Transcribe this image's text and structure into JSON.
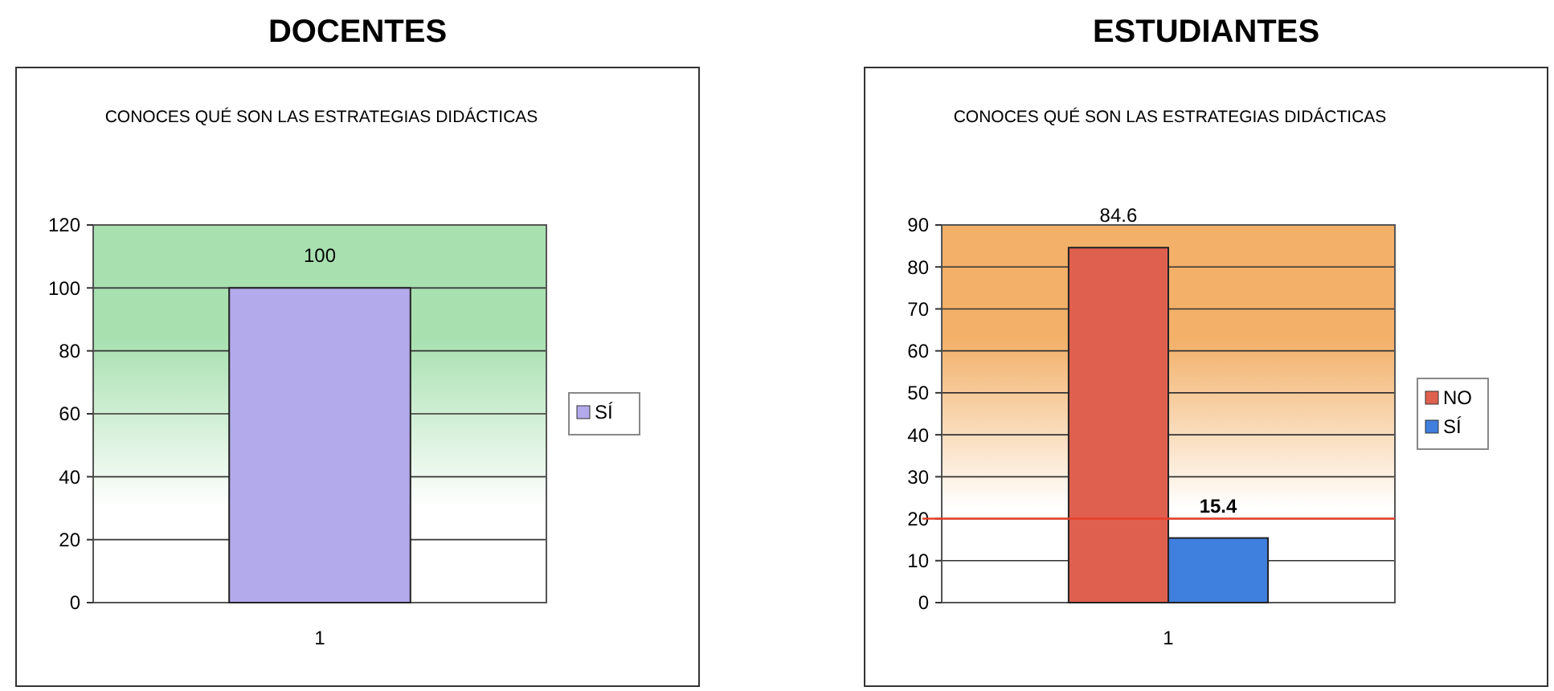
{
  "chart_data": [
    {
      "type": "bar",
      "title": "DOCENTES",
      "subtitle": "CONOCES QUÉ SON LAS ESTRATEGIAS DIDÁCTICAS",
      "categories": [
        "1"
      ],
      "series": [
        {
          "name": "SÍ",
          "color": "#b3aaec",
          "values": [
            100
          ]
        }
      ],
      "ylim": [
        0,
        120
      ],
      "yticks": [
        0,
        20,
        40,
        60,
        80,
        100,
        120
      ],
      "grid": "y",
      "legend": "right",
      "data_labels": true
    },
    {
      "type": "bar",
      "title": "ESTUDIANTES",
      "subtitle": "CONOCES QUÉ SON LAS ESTRATEGIAS DIDÁCTICAS",
      "categories": [
        "1"
      ],
      "series": [
        {
          "name": "NO",
          "color": "#e0604f",
          "values": [
            84.6
          ]
        },
        {
          "name": "SÍ",
          "color": "#3f7fde",
          "values": [
            15.4
          ]
        }
      ],
      "ylim": [
        0,
        90
      ],
      "yticks": [
        0,
        10,
        20,
        30,
        40,
        50,
        60,
        70,
        80,
        90
      ],
      "grid": "y",
      "legend": "right",
      "data_labels": true,
      "ref_lines": [
        {
          "axis": "y",
          "value": 20,
          "color": "#e8402a"
        }
      ]
    }
  ]
}
